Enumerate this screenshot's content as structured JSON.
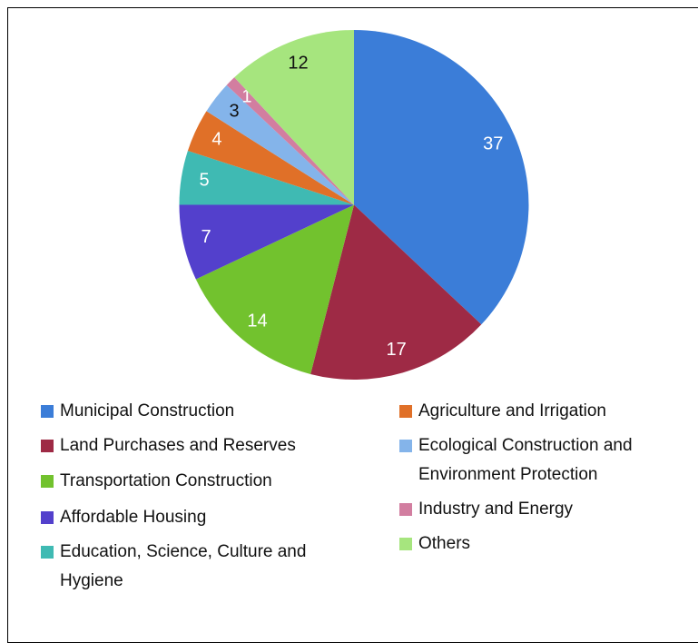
{
  "chart_data": {
    "type": "pie",
    "categories": [
      "Municipal Construction",
      "Land Purchases and Reserves",
      "Transportation Construction",
      "Affordable Housing",
      "Education, Science, Culture and Hygiene",
      "Agriculture and Irrigation",
      "Ecological Construction and Environment Protection",
      "Industry and Energy",
      "Others"
    ],
    "values": [
      37,
      17,
      14,
      7,
      5,
      4,
      3,
      1,
      12
    ],
    "colors": [
      "#3b7dd8",
      "#9e2a45",
      "#72c22e",
      "#5340cc",
      "#3fbab3",
      "#e07028",
      "#84b4ea",
      "#d27ea0",
      "#a6e57e"
    ],
    "legend": "bottom"
  }
}
